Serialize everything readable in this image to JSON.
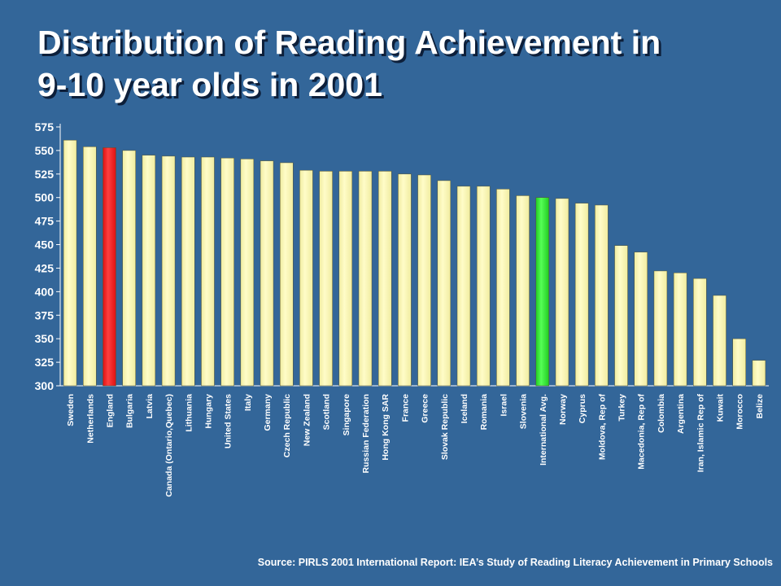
{
  "title_line1": "Distribution of Reading Achievement in",
  "title_line2": "9-10 year olds in 2001",
  "source": "Source: PIRLS 2001 International Report: IEA’s Study of Reading Literacy Achievement in Primary Schools",
  "colors": {
    "background": "#336699",
    "bar_default": "#f0eca0",
    "bar_highlight_england": "#dd1111",
    "bar_highlight_international": "#22cc22"
  },
  "chart_data": {
    "type": "bar",
    "categories": [
      "Sweden",
      "Netherlands",
      "England",
      "Bulgaria",
      "Latvia",
      "Canada (Ontario,Quebec)",
      "Lithuania",
      "Hungary",
      "United States",
      "Italy",
      "Germany",
      "Czech Republic",
      "New Zealand",
      "Scotland",
      "Singapore",
      "Russian Federation",
      "Hong Kong SAR",
      "France",
      "Greece",
      "Slovak Republic",
      "Iceland",
      "Romania",
      "Israel",
      "Slovenia",
      "International Avg.",
      "Norway",
      "Cyprus",
      "Moldova, Rep of",
      "Turkey",
      "Macedonia, Rep of",
      "Colombia",
      "Argentina",
      "Iran, Islamic Rep of",
      "Kuwait",
      "Morocco",
      "Belize"
    ],
    "values": [
      561,
      554,
      553,
      550,
      545,
      544,
      543,
      543,
      542,
      541,
      539,
      537,
      529,
      528,
      528,
      528,
      528,
      525,
      524,
      518,
      512,
      512,
      509,
      502,
      500,
      499,
      494,
      492,
      449,
      442,
      422,
      420,
      414,
      396,
      350,
      327
    ],
    "highlight": {
      "England": "red",
      "International Avg.": "green"
    },
    "ylim": [
      300,
      575
    ],
    "yticks": [
      300,
      325,
      350,
      375,
      400,
      425,
      450,
      475,
      500,
      525,
      550,
      575
    ],
    "grid": false,
    "legend": "none"
  }
}
